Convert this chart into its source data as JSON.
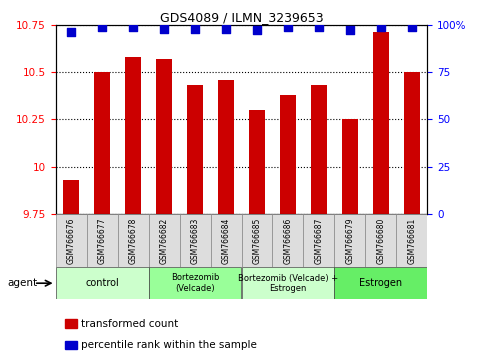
{
  "title": "GDS4089 / ILMN_3239653",
  "samples": [
    "GSM766676",
    "GSM766677",
    "GSM766678",
    "GSM766682",
    "GSM766683",
    "GSM766684",
    "GSM766685",
    "GSM766686",
    "GSM766687",
    "GSM766679",
    "GSM766680",
    "GSM766681"
  ],
  "bar_values": [
    9.93,
    10.5,
    10.58,
    10.57,
    10.43,
    10.46,
    10.3,
    10.38,
    10.43,
    10.25,
    10.71,
    10.5
  ],
  "dot_values": [
    96,
    99,
    99,
    98,
    98,
    98,
    97,
    99,
    99,
    97,
    99,
    99
  ],
  "bar_color": "#cc0000",
  "dot_color": "#0000cc",
  "ylim_left": [
    9.75,
    10.75
  ],
  "ylim_right": [
    0,
    100
  ],
  "yticks_left": [
    9.75,
    10.0,
    10.25,
    10.5,
    10.75
  ],
  "yticks_right": [
    0,
    25,
    50,
    75,
    100
  ],
  "ytick_labels_left": [
    "9.75",
    "10",
    "10.25",
    "10.5",
    "10.75"
  ],
  "ytick_labels_right": [
    "0",
    "25",
    "50",
    "75",
    "100%"
  ],
  "groups": [
    {
      "label": "control",
      "start": 0,
      "end": 3,
      "color": "#ccffcc"
    },
    {
      "label": "Bortezomib\n(Velcade)",
      "start": 3,
      "end": 6,
      "color": "#99ff99"
    },
    {
      "label": "Bortezomib (Velcade) +\nEstrogen",
      "start": 6,
      "end": 9,
      "color": "#ccffcc"
    },
    {
      "label": "Estrogen",
      "start": 9,
      "end": 12,
      "color": "#66ee66"
    }
  ],
  "agent_label": "agent",
  "legend_bar_label": "transformed count",
  "legend_dot_label": "percentile rank within the sample",
  "bar_width": 0.5,
  "dot_size": 28
}
